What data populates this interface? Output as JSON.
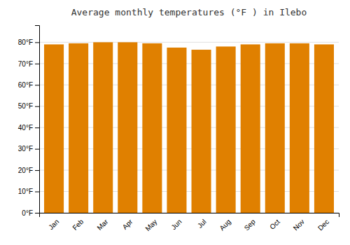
{
  "chart_data": {
    "type": "bar",
    "title": "Average monthly temperatures (°F ) in Ilebo",
    "categories": [
      "Jan",
      "Feb",
      "Mar",
      "Apr",
      "May",
      "Jun",
      "Jul",
      "Aug",
      "Sep",
      "Oct",
      "Nov",
      "Dec"
    ],
    "values": [
      79,
      79.5,
      80,
      80,
      79.5,
      77.5,
      76.5,
      78,
      79,
      79.5,
      79.5,
      79
    ],
    "color": "#E08000",
    "ylim": [
      0,
      88
    ],
    "yticks": [
      {
        "value": 0,
        "label": "0°F"
      },
      {
        "value": 10,
        "label": "10°F"
      },
      {
        "value": 20,
        "label": "20°F"
      },
      {
        "value": 30,
        "label": "30°F"
      },
      {
        "value": 40,
        "label": "40°F"
      },
      {
        "value": 50,
        "label": "50°F"
      },
      {
        "value": 60,
        "label": "60°F"
      },
      {
        "value": 70,
        "label": "70°F"
      },
      {
        "value": 80,
        "label": "80°F"
      }
    ],
    "grid": true
  }
}
